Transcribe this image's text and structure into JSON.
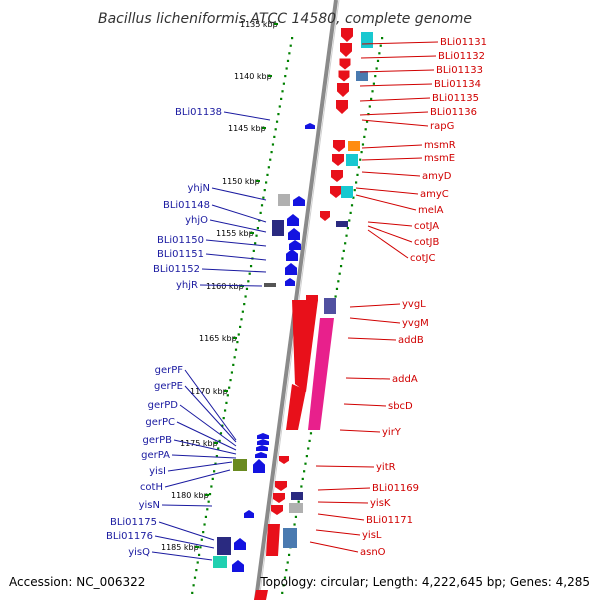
{
  "title": "Bacillus licheniformis ATCC 14580, complete genome",
  "footer": {
    "accession": "Accession: NC_006322",
    "topology": "Topology: circular; Length: 4,222,645 bp; Genes: 4,285"
  },
  "colors": {
    "backbone": "#8a8a8a",
    "forward_strand": "#e8101a",
    "reverse_strand": "#1313e0",
    "tick_dots": "#008000",
    "right_labels": "#d00000",
    "left_labels": "#1a1aa0",
    "magenta_feature": "#e8208c",
    "cyan_feature": "#18c8d0",
    "orange_feature": "#ff8c10",
    "navy_feature": "#2a2a80",
    "olive_feature": "#6a8a20",
    "teal_feature": "#20d0b0",
    "gray_feature": "#b0b0b0"
  },
  "scale_labels": [
    "1135 kbp",
    "1140 kbp",
    "1145 kbp",
    "1150 kbp",
    "1155 kbp",
    "1160 kbp",
    "1165 kbp",
    "1170 kbp",
    "1175 kbp",
    "1180 kbp",
    "1185 kbp"
  ],
  "forward_genes": [
    "BLi01131",
    "BLi01132",
    "BLi01133",
    "BLi01134",
    "BLi01135",
    "BLi01136",
    "rapG",
    "msmR",
    "msmE",
    "amyD",
    "amyC",
    "melA",
    "cotJA",
    "cotJB",
    "cotJC",
    "yvgL",
    "yvgM",
    "addB",
    "addA",
    "sbcD",
    "yirY",
    "yitR",
    "BLi01169",
    "yisK",
    "BLi01171",
    "yisL",
    "asnO"
  ],
  "reverse_genes": [
    "BLi01138",
    "yhjN",
    "BLi01148",
    "yhjO",
    "BLi01150",
    "BLi01151",
    "BLi01152",
    "yhjR",
    "gerPF",
    "gerPE",
    "gerPD",
    "gerPC",
    "gerPB",
    "gerPA",
    "yisI",
    "cotH",
    "yisN",
    "BLi01175",
    "BLi01176",
    "yisQ"
  ]
}
